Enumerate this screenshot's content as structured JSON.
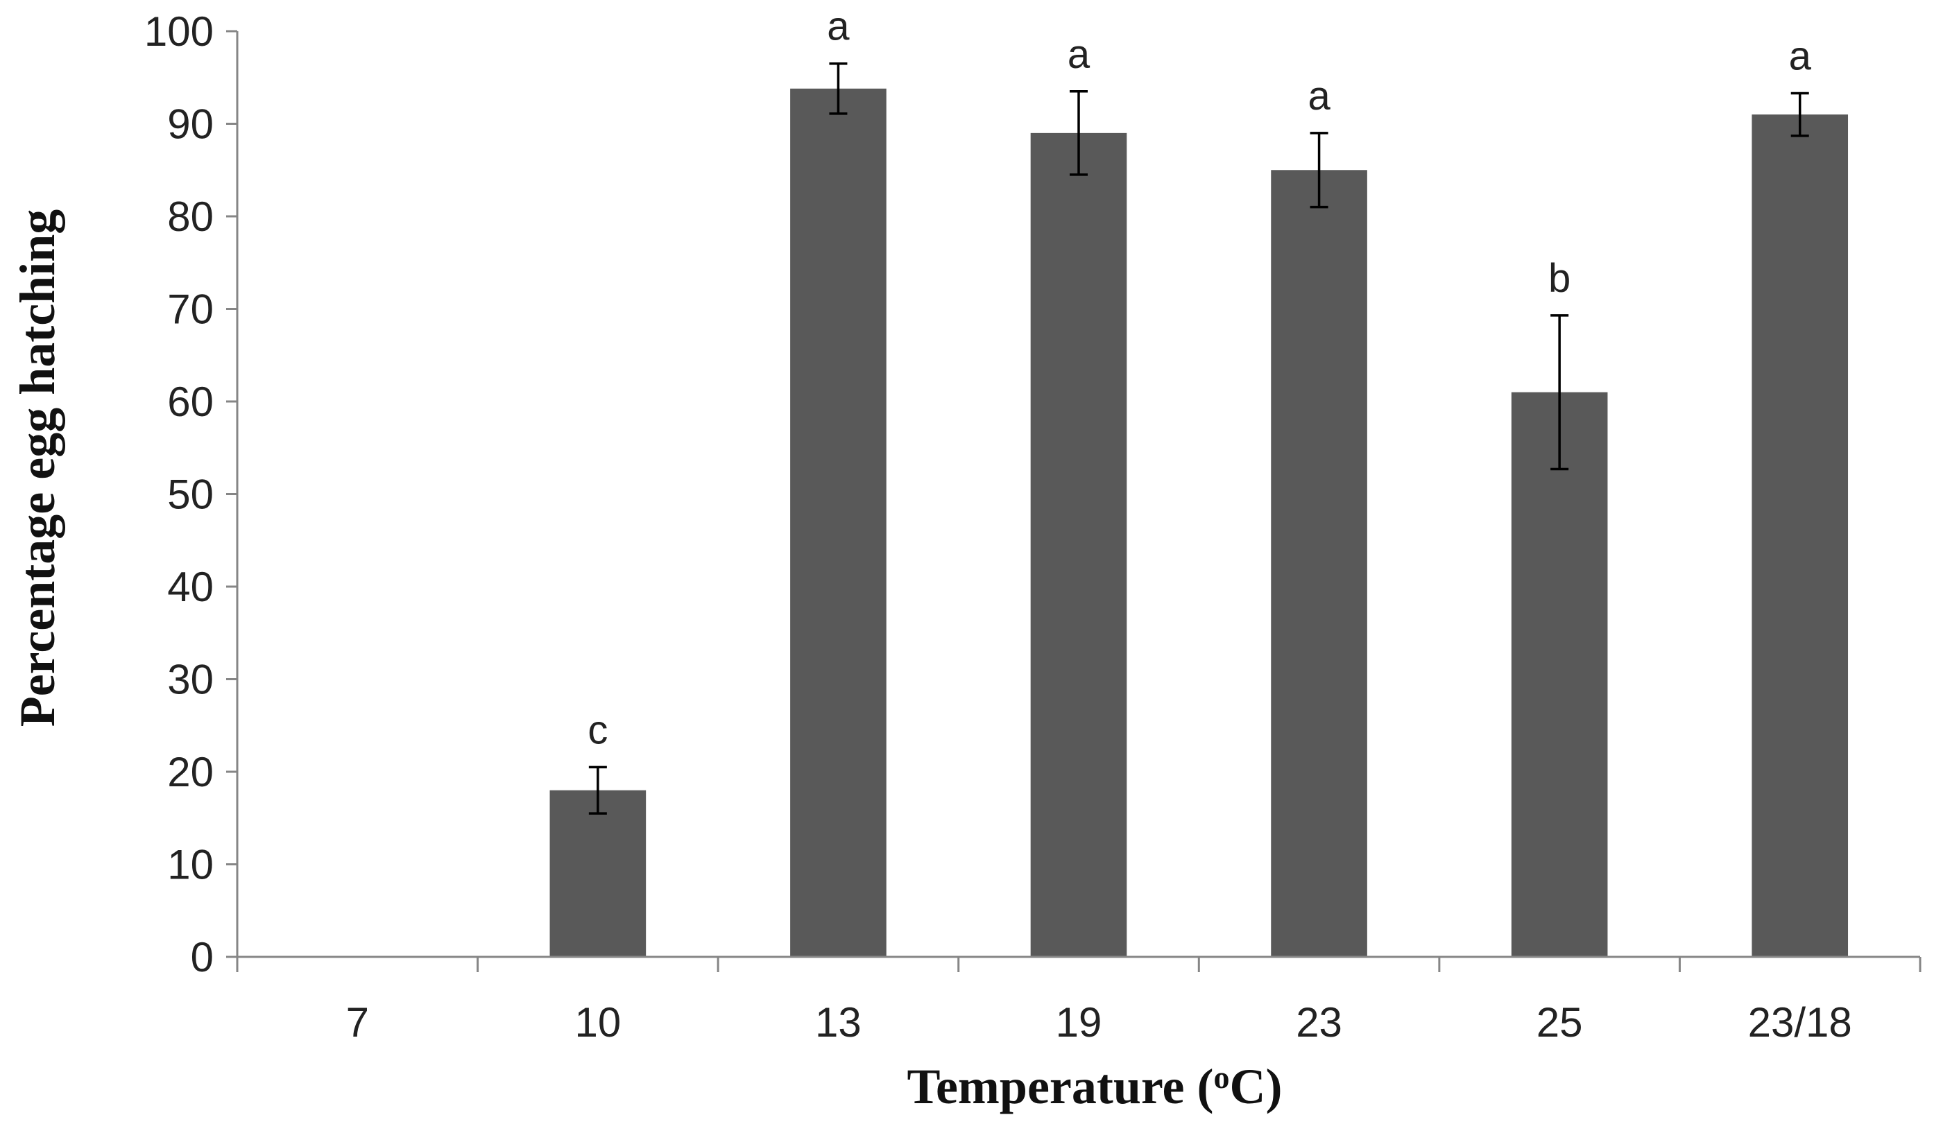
{
  "chart_data": {
    "type": "bar",
    "title": "",
    "xlabel": "Temperature (",
    "xlabel_superscript": "o",
    "xlabel_suffix": "C)",
    "ylabel": "Percentage egg hatching",
    "categories": [
      "7",
      "10",
      "13",
      "19",
      "23",
      "25",
      "23/18"
    ],
    "values": [
      0,
      18,
      93.8,
      89,
      85,
      61,
      91
    ],
    "error": [
      0,
      2.5,
      2.7,
      4.5,
      4,
      8.3,
      2.3
    ],
    "significance": [
      "",
      "c",
      "a",
      "a",
      "a",
      "b",
      "a"
    ],
    "ylim": [
      0,
      100
    ],
    "yticks": [
      0,
      10,
      20,
      30,
      40,
      50,
      60,
      70,
      80,
      90,
      100
    ],
    "ytick_labels": [
      "0",
      "10",
      "20",
      "30",
      "40",
      "50",
      "60",
      "70",
      "80",
      "90",
      "100"
    ],
    "grid": false,
    "legend": "none",
    "colors": {
      "bar": "#595959",
      "axis": "#868686",
      "errorbar": "#000000"
    }
  }
}
